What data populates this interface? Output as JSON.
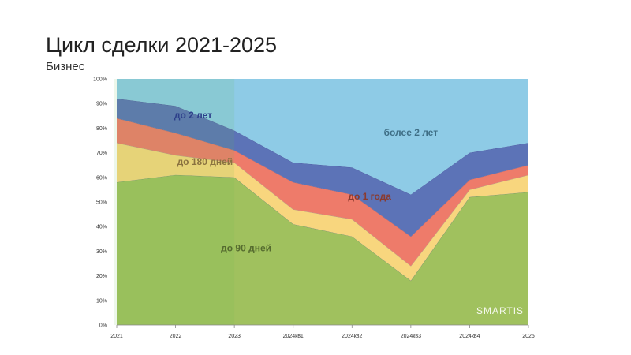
{
  "page": {
    "title": "Цикл сделки 2021-2025",
    "subtitle": "Бизнес"
  },
  "watermark": "SMARTIS",
  "colors": {
    "до 90 дней": "#A0C15E",
    "до 180 дней": "#F8D67E",
    "до 1 года": "#EE7B6A",
    "до 2 лет": "#5C73B7",
    "более 2 лет": "#8ECBE6",
    "highlight": "#6BBE4F"
  },
  "chart_data": {
    "type": "area",
    "stacked": true,
    "x": [
      "2021",
      "2022",
      "2023",
      "2024кв1",
      "2024кв2",
      "2024кв3",
      "2024кв4",
      "2025"
    ],
    "y_ticks": [
      "0%",
      "10%",
      "20%",
      "30%",
      "40%",
      "50%",
      "60%",
      "70%",
      "80%",
      "90%",
      "100%"
    ],
    "ylim": [
      0,
      100
    ],
    "highlight_range": [
      "2021",
      "2023"
    ],
    "series": [
      {
        "name": "до 90 дней",
        "values": [
          58,
          61,
          60,
          41,
          36,
          18,
          52,
          54
        ],
        "label_at": [
          2.2,
          30
        ]
      },
      {
        "name": "до 180 дней",
        "values": [
          16,
          8,
          6,
          6,
          7,
          6,
          3,
          7
        ],
        "label_at": [
          1.5,
          65
        ]
      },
      {
        "name": "до 1 года",
        "values": [
          10,
          9,
          5,
          11,
          10,
          12,
          4,
          4
        ],
        "label_at": [
          4.3,
          51
        ]
      },
      {
        "name": "до 2 лет",
        "values": [
          8,
          11,
          8,
          8,
          11,
          17,
          11,
          9
        ],
        "label_at": [
          1.3,
          84
        ]
      },
      {
        "name": "более 2 лет",
        "values": [
          8,
          11,
          21,
          34,
          36,
          47,
          30,
          26
        ],
        "label_at": [
          5.0,
          77
        ]
      }
    ]
  }
}
